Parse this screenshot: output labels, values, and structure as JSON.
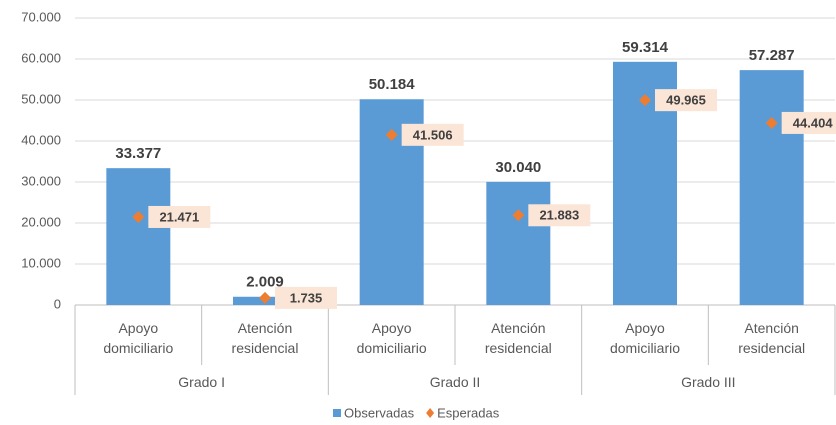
{
  "chart_data": {
    "type": "bar",
    "categories": [
      "Apoyo domiciliario",
      "Atención residencial",
      "Apoyo domiciliario",
      "Atención residencial",
      "Apoyo domiciliario",
      "Atención residencial"
    ],
    "groups": [
      "Grado I",
      "Grado II",
      "Grado III"
    ],
    "series": [
      {
        "name": "Observadas",
        "type": "bar",
        "color": "#5b9bd5",
        "values": [
          33377,
          2009,
          50184,
          30040,
          59314,
          57287
        ],
        "value_labels": [
          "33.377",
          "2.009",
          "50.184",
          "30.040",
          "59.314",
          "57.287"
        ]
      },
      {
        "name": "Esperadas",
        "type": "marker",
        "marker": "diamond",
        "color": "#ed7d31",
        "values": [
          21471,
          1735,
          41506,
          21883,
          49965,
          44404
        ],
        "value_labels": [
          "21.471",
          "1.735",
          "41.506",
          "21.883",
          "49.965",
          "44.404"
        ]
      }
    ],
    "ylim": [
      0,
      70000
    ],
    "yticks": [
      0,
      {
        "value": 10000,
        "label": "10.000"
      },
      {
        "value": 20000,
        "label": "20.000"
      },
      {
        "value": 30000,
        "label": "30.000"
      },
      {
        "value": 40000,
        "label": "40.000"
      },
      {
        "value": 50000,
        "label": "50.000"
      },
      {
        "value": 60000,
        "label": "60.000"
      },
      {
        "value": 70000,
        "label": "70.000"
      }
    ],
    "grid": true,
    "legend": "bottom"
  }
}
